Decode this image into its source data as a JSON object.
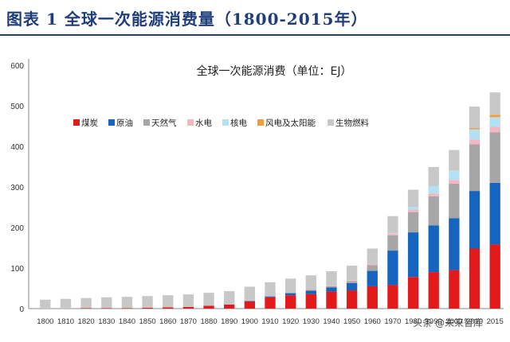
{
  "header": {
    "title": "图表 1   全球一次能源消费量（1800-2015年）"
  },
  "watermark": "头条 @未来智库",
  "chart_data": {
    "type": "bar",
    "stacked": true,
    "title": "全球一次能源消费（单位：EJ）",
    "xlabel": "",
    "ylabel": "",
    "ylim": [
      0,
      600
    ],
    "yticks": [
      0,
      100,
      200,
      300,
      400,
      500,
      600
    ],
    "grid": false,
    "legend_position": "top-left",
    "categories": [
      "1800",
      "1810",
      "1820",
      "1830",
      "1840",
      "1850",
      "1860",
      "1870",
      "1880",
      "1890",
      "1900",
      "1910",
      "1920",
      "1930",
      "1940",
      "1950",
      "1960",
      "1970",
      "1980",
      "1990",
      "2000",
      "2010",
      "2015"
    ],
    "series": [
      {
        "name": "煤炭",
        "color": "#e31a1c",
        "values": [
          0,
          0,
          1,
          1,
          1,
          2,
          3,
          4,
          7,
          10,
          18,
          28,
          33,
          36,
          42,
          45,
          55,
          58,
          78,
          90,
          95,
          148,
          158
        ]
      },
      {
        "name": "原油",
        "color": "#1565c0",
        "values": [
          0,
          0,
          0,
          0,
          0,
          0,
          0,
          0,
          0,
          0,
          1,
          2,
          5,
          8,
          10,
          18,
          38,
          85,
          110,
          115,
          128,
          142,
          152
        ]
      },
      {
        "name": "天然气",
        "color": "#a6a6a6",
        "values": [
          0,
          0,
          0,
          0,
          0,
          0,
          0,
          0,
          0,
          0,
          1,
          1,
          1,
          2,
          3,
          5,
          14,
          38,
          50,
          72,
          85,
          115,
          125
        ]
      },
      {
        "name": "水电",
        "color": "#f4b6c2",
        "values": [
          0,
          0,
          0,
          0,
          0,
          0,
          0,
          0,
          0,
          0,
          0,
          0,
          0,
          1,
          1,
          2,
          3,
          4,
          6,
          7,
          9,
          12,
          13
        ]
      },
      {
        "name": "核电",
        "color": "#b3e0f2",
        "values": [
          0,
          0,
          0,
          0,
          0,
          0,
          0,
          0,
          0,
          0,
          0,
          0,
          0,
          0,
          0,
          0,
          0,
          1,
          7,
          18,
          25,
          25,
          24
        ]
      },
      {
        "name": "风电及太阳能",
        "color": "#f39c3c",
        "values": [
          0,
          0,
          0,
          0,
          0,
          0,
          0,
          0,
          0,
          0,
          0,
          0,
          0,
          0,
          0,
          0,
          0,
          0,
          0,
          0,
          1,
          3,
          6
        ]
      },
      {
        "name": "生物燃料",
        "color": "#c8c8c8",
        "values": [
          22,
          24,
          25,
          27,
          28,
          29,
          30,
          31,
          32,
          33,
          34,
          34,
          35,
          35,
          36,
          36,
          38,
          42,
          42,
          47,
          48,
          53,
          55
        ]
      }
    ]
  }
}
